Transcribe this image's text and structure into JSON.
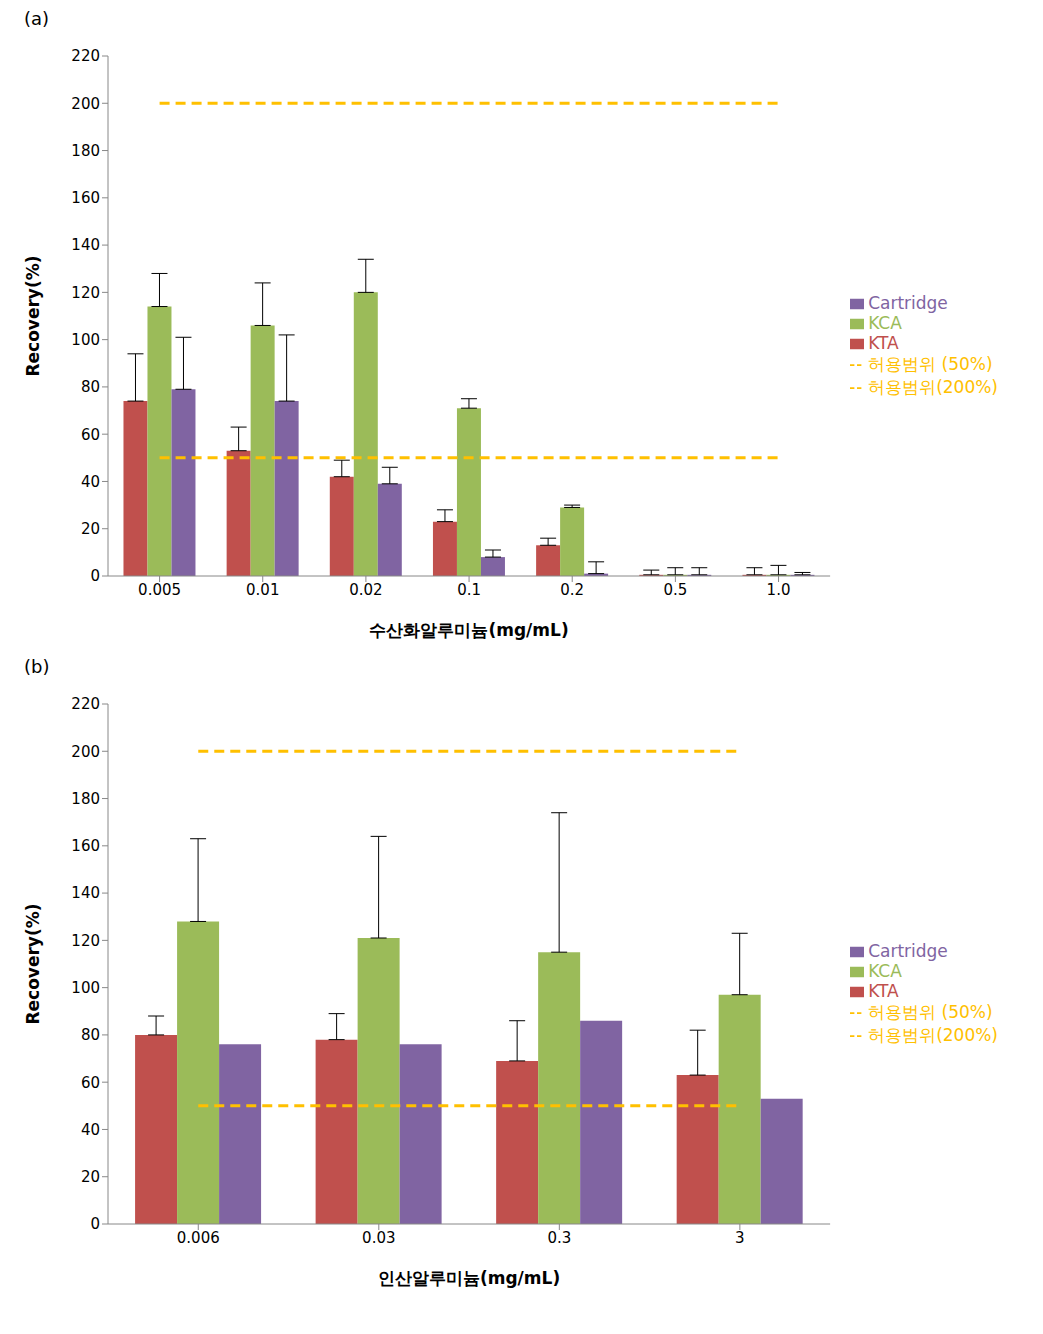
{
  "chart_data": [
    {
      "type": "bar",
      "title": "(a)",
      "x_label": "수산화알루미늄(mg/mL)",
      "y_label": "Recovery(%)",
      "categories": [
        "0.005",
        "0.01",
        "0.02",
        "0.1",
        "0.2",
        "0.5",
        "1.0"
      ],
      "ylim": [
        0,
        220
      ],
      "yticks": [
        0,
        20,
        40,
        60,
        80,
        100,
        120,
        140,
        160,
        180,
        200,
        220
      ],
      "grid": false,
      "legend": "right",
      "series": [
        {
          "name": "KTA",
          "type": "bar",
          "color": "#c0504d",
          "values": [
            74,
            53,
            42,
            23,
            13,
            0.5,
            0.5
          ],
          "errors": [
            20,
            10,
            7,
            5,
            3,
            2,
            3
          ]
        },
        {
          "name": "KCA",
          "type": "bar",
          "color": "#9bbb59",
          "values": [
            114,
            106,
            120,
            71,
            29,
            0.5,
            0.5
          ],
          "errors": [
            14,
            18,
            14,
            4,
            1,
            3,
            4
          ]
        },
        {
          "name": "Cartridge",
          "type": "bar",
          "color": "#8064a2",
          "values": [
            79,
            74,
            39,
            8,
            1,
            0.5,
            0.5
          ],
          "errors": [
            22,
            28,
            7,
            3,
            5,
            3,
            1
          ]
        },
        {
          "name": "허용범위 (50%)",
          "type": "line",
          "line_style": "dashed",
          "color": "#ffc000",
          "values": [
            50,
            50,
            50,
            50,
            50,
            50,
            50
          ]
        },
        {
          "name": "허용범위(200%)",
          "type": "line",
          "line_style": "dashed",
          "color": "#ffc000",
          "values": [
            200,
            200,
            200,
            200,
            200,
            200,
            200
          ]
        }
      ]
    },
    {
      "type": "bar",
      "title": "(b)",
      "x_label": "인산알루미늄(mg/mL)",
      "y_label": "Recovery(%)",
      "categories": [
        "0.006",
        "0.03",
        "0.3",
        "3"
      ],
      "ylim": [
        0,
        220
      ],
      "yticks": [
        0,
        20,
        40,
        60,
        80,
        100,
        120,
        140,
        160,
        180,
        200,
        220
      ],
      "grid": false,
      "legend": "right",
      "series": [
        {
          "name": "KTA",
          "type": "bar",
          "color": "#c0504d",
          "values": [
            80,
            78,
            69,
            63
          ],
          "errors": [
            8,
            11,
            17,
            19
          ]
        },
        {
          "name": "KCA",
          "type": "bar",
          "color": "#9bbb59",
          "values": [
            128,
            121,
            115,
            97
          ],
          "errors": [
            35,
            43,
            59,
            26
          ]
        },
        {
          "name": "Cartridge",
          "type": "bar",
          "color": "#8064a2",
          "values": [
            76,
            76,
            86,
            53
          ]
        },
        {
          "name": "허용범위 (50%)",
          "type": "line",
          "line_style": "dashed",
          "color": "#ffc000",
          "values": [
            50,
            50,
            50,
            50
          ]
        },
        {
          "name": "허용범위(200%)",
          "type": "line",
          "line_style": "dashed",
          "color": "#ffc000",
          "values": [
            200,
            200,
            200,
            200
          ]
        }
      ]
    }
  ]
}
